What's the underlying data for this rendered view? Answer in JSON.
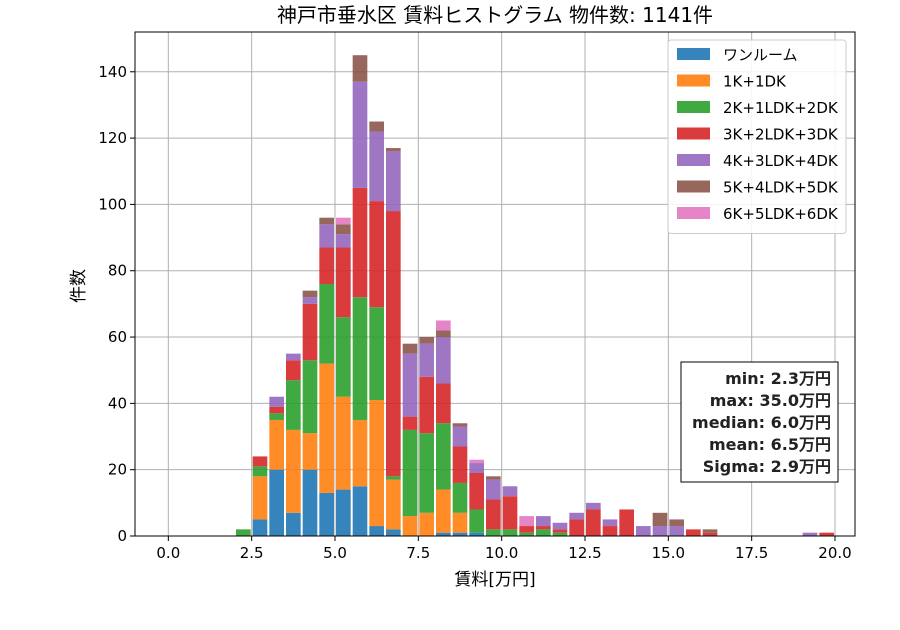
{
  "chart_data": {
    "type": "bar",
    "stacked": true,
    "title": "神戸市垂水区 賃料ヒストグラム 物件数: 1141件",
    "xlabel": "賃料[万円]",
    "ylabel": "件数",
    "xlim": [
      -1.0,
      20.6
    ],
    "ylim": [
      0,
      152
    ],
    "xticks": [
      "0.0",
      "2.5",
      "5.0",
      "7.5",
      "10.0",
      "12.5",
      "15.0",
      "17.5",
      "20.0"
    ],
    "yticks": [
      "0",
      "20",
      "40",
      "60",
      "80",
      "100",
      "120",
      "140"
    ],
    "grid": true,
    "legend_position": "top-right",
    "bin_width": 0.5,
    "bins": [
      2.0,
      2.5,
      3.0,
      3.5,
      4.0,
      4.5,
      5.0,
      5.5,
      6.0,
      6.5,
      7.0,
      7.5,
      8.0,
      8.5,
      9.0,
      9.5,
      10.0,
      10.5,
      11.0,
      11.5,
      12.0,
      12.5,
      13.0,
      13.5,
      14.0,
      14.5,
      15.0,
      15.5,
      16.0,
      16.5,
      17.0,
      17.5,
      18.0,
      18.5,
      19.0,
      19.5
    ],
    "series": [
      {
        "name": "ワンルーム",
        "color": "#1f77b4",
        "values": [
          0,
          5,
          20,
          7,
          20,
          13,
          14,
          15,
          3,
          2,
          0,
          0,
          1,
          1,
          1,
          0,
          0,
          0,
          0,
          0,
          0,
          0,
          0,
          0,
          0,
          0,
          0,
          0,
          0,
          0,
          0,
          0,
          0,
          0,
          0,
          0
        ]
      },
      {
        "name": "1K+1DK",
        "color": "#ff7f0e",
        "values": [
          0,
          13,
          15,
          25,
          11,
          39,
          28,
          20,
          38,
          15,
          6,
          7,
          13,
          6,
          0,
          0,
          0,
          0,
          0,
          0,
          0,
          0,
          0,
          0,
          0,
          0,
          0,
          0,
          0,
          0,
          0,
          0,
          0,
          0,
          0,
          0
        ]
      },
      {
        "name": "2K+1LDK+2DK",
        "color": "#2ca02c",
        "values": [
          2,
          3,
          2,
          15,
          22,
          24,
          24,
          37,
          28,
          1,
          26,
          24,
          20,
          9,
          7,
          2,
          2,
          1,
          2,
          1,
          0,
          0,
          0,
          0,
          0,
          0,
          0,
          0,
          0,
          0,
          0,
          0,
          0,
          0,
          0,
          0
        ]
      },
      {
        "name": "3K+2LDK+3DK",
        "color": "#d62728",
        "values": [
          0,
          3,
          2,
          6,
          17,
          11,
          21,
          33,
          32,
          80,
          4,
          17,
          12,
          11,
          11,
          9,
          10,
          2,
          1,
          1,
          5,
          8,
          3,
          8,
          0,
          0,
          0,
          2,
          1,
          0,
          0,
          0,
          0,
          0,
          0,
          1
        ]
      },
      {
        "name": "4K+3LDK+4DK",
        "color": "#9467bd",
        "values": [
          0,
          0,
          3,
          2,
          2,
          7,
          4,
          32,
          21,
          18,
          19,
          10,
          14,
          6,
          3,
          6,
          3,
          0,
          3,
          2,
          2,
          2,
          2,
          0,
          3,
          3,
          3,
          0,
          0,
          0,
          0,
          0,
          0,
          0,
          1,
          0
        ]
      },
      {
        "name": "5K+4LDK+5DK",
        "color": "#8c564b",
        "values": [
          0,
          0,
          0,
          0,
          2,
          2,
          3,
          8,
          3,
          1,
          3,
          2,
          2,
          1,
          0,
          1,
          0,
          0,
          0,
          0,
          0,
          0,
          0,
          0,
          0,
          4,
          2,
          0,
          1,
          0,
          0,
          0,
          0,
          0,
          0,
          0
        ]
      },
      {
        "name": "6K+5LDK+6DK",
        "color": "#e377c2",
        "values": [
          0,
          0,
          0,
          0,
          0,
          0,
          2,
          0,
          0,
          0,
          0,
          0,
          3,
          0,
          1,
          0,
          0,
          3,
          0,
          0,
          0,
          0,
          0,
          0,
          0,
          0,
          0,
          0,
          0,
          0,
          0,
          0,
          0,
          0,
          0,
          0
        ]
      }
    ],
    "stats": [
      "min: 2.3万円",
      "max: 35.0万円",
      "median: 6.0万円",
      "mean: 6.5万円",
      "Sigma: 2.9万円"
    ]
  }
}
